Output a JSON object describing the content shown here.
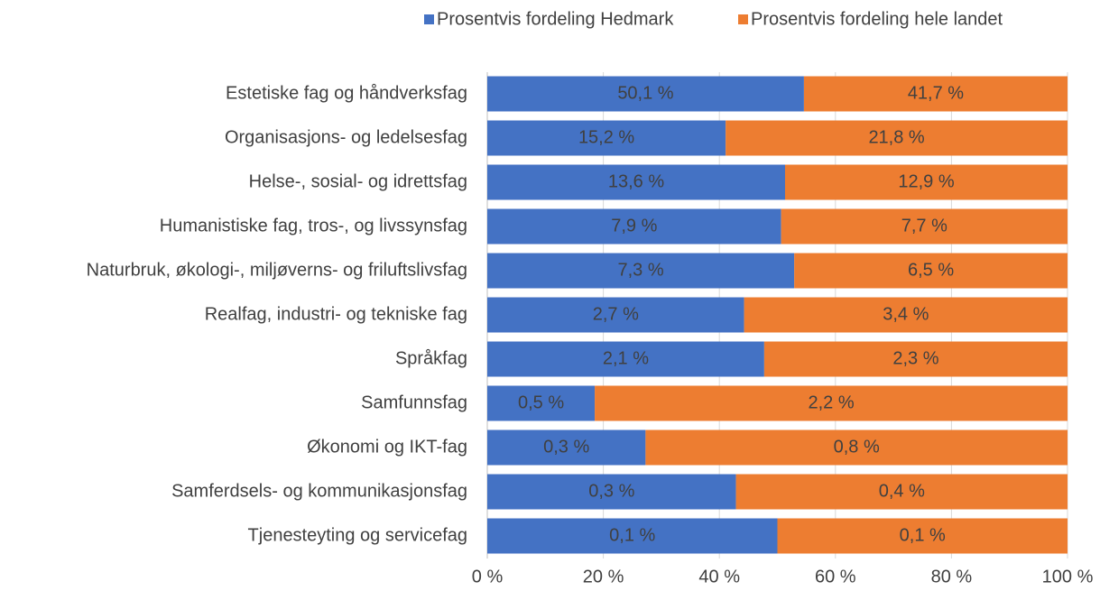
{
  "chart_data": {
    "type": "bar",
    "stacking": "percent",
    "orientation": "horizontal",
    "categories": [
      "Estetiske fag og håndverksfag",
      "Organisasjons- og ledelsesfag",
      "Helse-, sosial- og idrettsfag",
      "Humanistiske fag, tros-, og livssynsfag",
      "Naturbruk, økologi-, miljøverns- og friluftslivsfag",
      "Realfag, industri- og tekniske fag",
      "Språkfag",
      "Samfunnsfag",
      "Økonomi og IKT-fag",
      "Samferdsels- og kommunikasjonsfag",
      "Tjenesteyting og servicefag"
    ],
    "series": [
      {
        "name": "Prosentvis fordeling Hedmark",
        "color": "#4472c4",
        "values": [
          50.1,
          15.2,
          13.6,
          7.9,
          7.3,
          2.7,
          2.1,
          0.5,
          0.3,
          0.3,
          0.1
        ],
        "value_labels": [
          "50,1 %",
          "15,2 %",
          "13,6 %",
          "7,9 %",
          "7,3 %",
          "2,7 %",
          "2,1 %",
          "0,5 %",
          "0,3 %",
          "0,3 %",
          "0,1 %"
        ]
      },
      {
        "name": "Prosentvis fordeling hele landet",
        "color": "#ed7d31",
        "values": [
          41.7,
          21.8,
          12.9,
          7.7,
          6.5,
          3.4,
          2.3,
          2.2,
          0.8,
          0.4,
          0.1
        ],
        "value_labels": [
          "41,7 %",
          "21,8 %",
          "12,9 %",
          "7,7 %",
          "6,5 %",
          "3,4 %",
          "2,3 %",
          "2,2 %",
          "0,8 %",
          "0,4 %",
          "0,1 %"
        ]
      }
    ],
    "xlim": [
      0,
      100
    ],
    "xticks": [
      {
        "value": 0,
        "label": "0 %"
      },
      {
        "value": 20,
        "label": "20 %"
      },
      {
        "value": 40,
        "label": "40 %"
      },
      {
        "value": 60,
        "label": "60 %"
      },
      {
        "value": 80,
        "label": "80 %"
      },
      {
        "value": 100,
        "label": "100 %"
      }
    ],
    "grid": true,
    "legend": "top"
  }
}
